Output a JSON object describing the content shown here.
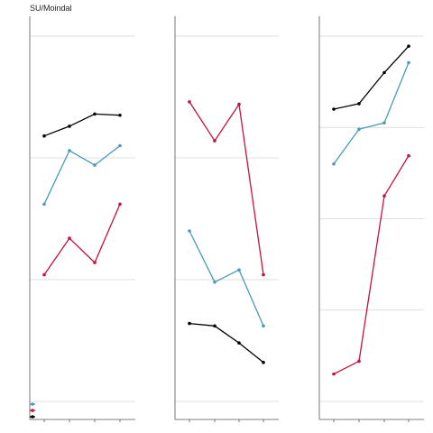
{
  "chart_data": {
    "title": "SU/Moindal",
    "type": "line",
    "x": [
      1,
      2,
      3,
      4
    ],
    "grid": "horizontal",
    "legend": {
      "placement": "bottom-left",
      "shows_labels": false
    },
    "series_colors": [
      "#000000",
      "#4a9bb5",
      "#c8103c"
    ],
    "panels": [
      {
        "ylim": [
          0,
          1.5
        ],
        "gridlines": [
          0,
          0.5,
          1.0,
          1.5
        ],
        "series": [
          {
            "color": "#000000",
            "values": [
              1.09,
              1.13,
              1.18,
              1.175
            ]
          },
          {
            "color": "#4a9bb5",
            "values": [
              0.81,
              1.03,
              0.97,
              1.05
            ]
          },
          {
            "color": "#c8103c",
            "values": [
              0.52,
              0.67,
              0.57,
              0.81
            ]
          }
        ]
      },
      {
        "ylim": [
          0,
          1.5
        ],
        "gridlines": [
          0,
          0.5,
          1.0,
          1.5
        ],
        "series": [
          {
            "color": "#000000",
            "values": [
              0.32,
              0.31,
              0.24,
              0.16
            ]
          },
          {
            "color": "#4a9bb5",
            "values": [
              0.7,
              0.49,
              0.54,
              0.31
            ]
          },
          {
            "color": "#c8103c",
            "values": [
              1.23,
              1.07,
              1.22,
              0.52
            ]
          }
        ]
      },
      {
        "ylim": [
          0,
          4
        ],
        "gridlines": [
          0,
          1,
          2,
          3,
          4
        ],
        "series": [
          {
            "color": "#000000",
            "values": [
              3.2,
              3.26,
              3.6,
              3.89
            ]
          },
          {
            "color": "#4a9bb5",
            "values": [
              2.6,
              2.98,
              3.05,
              3.71
            ]
          },
          {
            "color": "#c8103c",
            "values": [
              0.3,
              0.44,
              2.25,
              2.69
            ]
          }
        ]
      }
    ]
  }
}
